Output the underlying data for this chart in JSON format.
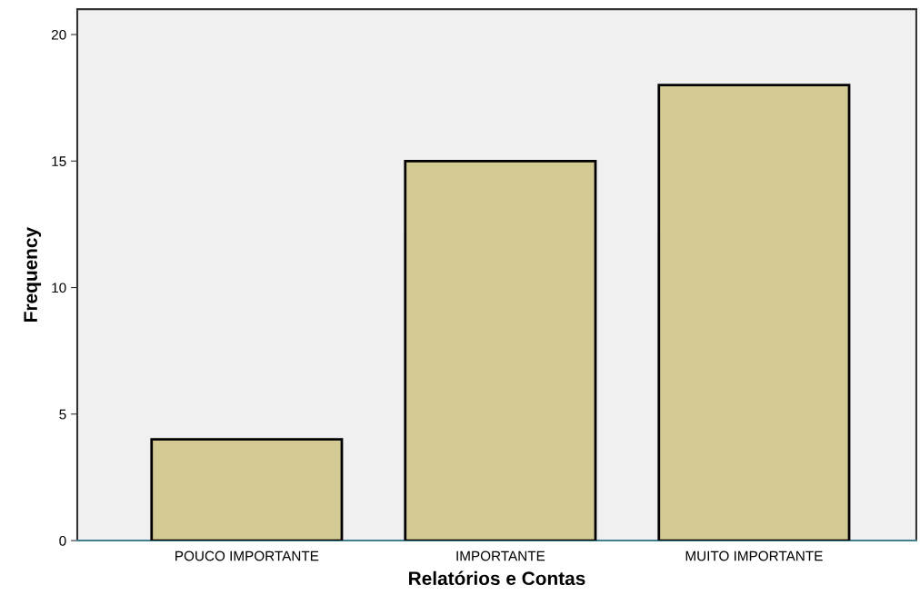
{
  "chart_data": {
    "type": "bar",
    "xlabel": "Relatórios e Contas",
    "ylabel": "Frequency",
    "categories": [
      "POUCO IMPORTANTE",
      "IMPORTANTE",
      "MUITO IMPORTANTE"
    ],
    "values": [
      4,
      15,
      18
    ],
    "color": "#d4cb94",
    "ylim": [
      0,
      21
    ],
    "yticks": [
      0,
      5,
      10,
      15,
      20
    ],
    "grid": false
  }
}
